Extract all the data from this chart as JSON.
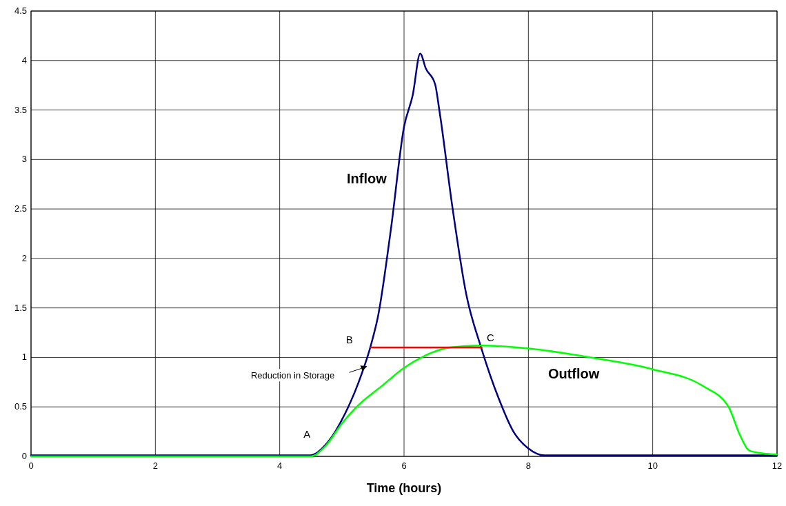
{
  "chart_data": {
    "type": "line",
    "xlabel": "Time (hours)",
    "xlim": [
      0,
      12
    ],
    "xticks": [
      0,
      2,
      4,
      6,
      8,
      10,
      12
    ],
    "ylim": [
      0,
      4.5
    ],
    "yticks": [
      0,
      0.5,
      1,
      1.5,
      2,
      2.5,
      3,
      3.5,
      4,
      4.5
    ],
    "grid": true,
    "marker": "none",
    "series": [
      {
        "name": "Inflow",
        "color": "#000080",
        "x": [
          0,
          4.49,
          4.77,
          5.05,
          5.27,
          5.47,
          5.58,
          5.79,
          6.0,
          6.14,
          6.26,
          6.35,
          6.5,
          6.57,
          6.78,
          7.0,
          7.24,
          7.52,
          7.76,
          8.0,
          8.26,
          12
        ],
        "values": [
          0.01,
          0.01,
          0.14,
          0.43,
          0.75,
          1.13,
          1.41,
          2.3,
          3.33,
          3.65,
          4.07,
          3.92,
          3.76,
          3.49,
          2.51,
          1.64,
          1.1,
          0.59,
          0.25,
          0.08,
          0.01,
          0.01
        ]
      },
      {
        "name": "Outflow",
        "color": "#00ff00",
        "x": [
          0,
          4.5,
          4.73,
          5.01,
          5.27,
          5.66,
          5.99,
          6.31,
          6.74,
          7.22,
          8.0,
          9.0,
          10.0,
          10.81,
          11.22,
          11.4,
          11.55,
          11.77,
          12
        ],
        "values": [
          0,
          0,
          0.1,
          0.34,
          0.52,
          0.72,
          0.89,
          1.01,
          1.1,
          1.12,
          1.09,
          1.0,
          0.88,
          0.71,
          0.5,
          0.22,
          0.06,
          0.03,
          0.02
        ]
      },
      {
        "color": "#ff0000",
        "x": [
          5.47,
          7.25
        ],
        "values": [
          1.1,
          1.1
        ]
      }
    ],
    "annotations": [
      "A",
      "B",
      "C",
      "Reduction in Storage"
    ]
  }
}
